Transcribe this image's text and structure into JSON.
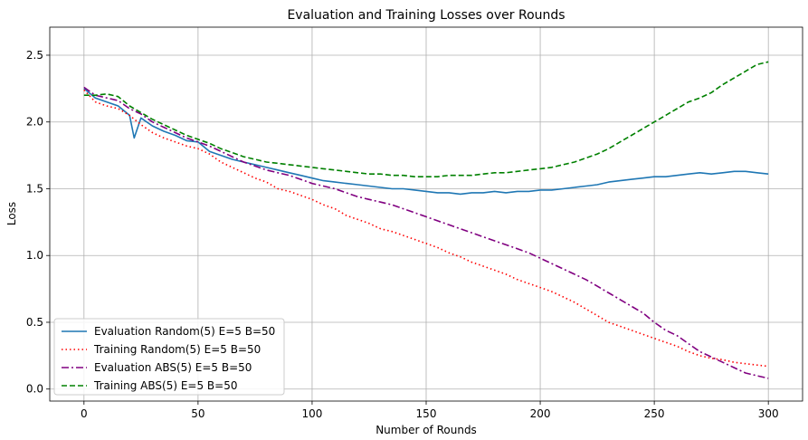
{
  "chart_data": {
    "type": "line",
    "title": "Evaluation and Training Losses over Rounds",
    "xlabel": "Number of Rounds",
    "ylabel": "Loss",
    "xlim": [
      -15,
      315
    ],
    "ylim": [
      -0.09,
      2.71
    ],
    "xticks": [
      0,
      50,
      100,
      150,
      200,
      250,
      300
    ],
    "yticks": [
      0.0,
      0.5,
      1.0,
      1.5,
      2.0,
      2.5
    ],
    "xtick_labels": [
      "0",
      "50",
      "100",
      "150",
      "200",
      "250",
      "300"
    ],
    "ytick_labels": [
      "0.0",
      "0.5",
      "1.0",
      "1.5",
      "2.0",
      "2.5"
    ],
    "grid": true,
    "legend_position": "lower-left",
    "series": [
      {
        "name": "Evaluation Random(5) E=5 B=50",
        "color": "#1f77b4",
        "style": "solid",
        "x": [
          0,
          5,
          10,
          15,
          20,
          22,
          25,
          30,
          35,
          40,
          45,
          50,
          55,
          60,
          65,
          70,
          75,
          80,
          85,
          90,
          95,
          100,
          105,
          110,
          115,
          120,
          125,
          130,
          135,
          140,
          145,
          150,
          155,
          160,
          165,
          170,
          175,
          180,
          185,
          190,
          195,
          200,
          205,
          210,
          215,
          220,
          225,
          230,
          235,
          240,
          245,
          250,
          255,
          260,
          265,
          270,
          275,
          280,
          285,
          290,
          295,
          300
        ],
        "y": [
          2.25,
          2.18,
          2.15,
          2.12,
          2.05,
          1.88,
          2.03,
          1.97,
          1.93,
          1.9,
          1.86,
          1.85,
          1.78,
          1.75,
          1.72,
          1.7,
          1.68,
          1.66,
          1.64,
          1.62,
          1.6,
          1.58,
          1.56,
          1.55,
          1.54,
          1.53,
          1.52,
          1.51,
          1.5,
          1.5,
          1.49,
          1.48,
          1.47,
          1.47,
          1.46,
          1.47,
          1.47,
          1.48,
          1.47,
          1.48,
          1.48,
          1.49,
          1.49,
          1.5,
          1.51,
          1.52,
          1.53,
          1.55,
          1.56,
          1.57,
          1.58,
          1.59,
          1.59,
          1.6,
          1.61,
          1.62,
          1.61,
          1.62,
          1.63,
          1.63,
          1.62,
          1.61
        ]
      },
      {
        "name": "Training Random(5) E=5 B=50",
        "color": "#ff0000",
        "style": "dotted",
        "x": [
          0,
          5,
          10,
          15,
          20,
          25,
          30,
          35,
          40,
          45,
          50,
          55,
          60,
          65,
          70,
          75,
          80,
          85,
          90,
          95,
          100,
          105,
          110,
          115,
          120,
          125,
          130,
          135,
          140,
          145,
          150,
          155,
          160,
          165,
          170,
          175,
          180,
          185,
          190,
          195,
          200,
          205,
          210,
          215,
          220,
          225,
          230,
          235,
          240,
          245,
          250,
          255,
          260,
          265,
          270,
          275,
          280,
          285,
          290,
          295,
          300
        ],
        "y": [
          2.24,
          2.15,
          2.12,
          2.1,
          2.05,
          1.98,
          1.92,
          1.88,
          1.85,
          1.82,
          1.8,
          1.76,
          1.7,
          1.66,
          1.62,
          1.58,
          1.55,
          1.5,
          1.48,
          1.45,
          1.42,
          1.38,
          1.35,
          1.3,
          1.27,
          1.24,
          1.2,
          1.18,
          1.15,
          1.12,
          1.09,
          1.06,
          1.02,
          0.99,
          0.95,
          0.92,
          0.89,
          0.86,
          0.82,
          0.79,
          0.76,
          0.73,
          0.69,
          0.65,
          0.6,
          0.55,
          0.5,
          0.47,
          0.44,
          0.41,
          0.38,
          0.35,
          0.32,
          0.28,
          0.25,
          0.23,
          0.22,
          0.2,
          0.19,
          0.18,
          0.17
        ]
      },
      {
        "name": "Evaluation ABS(5) E=5 B=50",
        "color": "#800080",
        "style": "dashdot",
        "x": [
          0,
          5,
          10,
          15,
          20,
          25,
          30,
          35,
          40,
          45,
          50,
          55,
          60,
          65,
          70,
          75,
          80,
          85,
          90,
          95,
          100,
          105,
          110,
          115,
          120,
          125,
          130,
          135,
          140,
          145,
          150,
          155,
          160,
          165,
          170,
          175,
          180,
          185,
          190,
          195,
          200,
          205,
          210,
          215,
          220,
          225,
          230,
          235,
          240,
          245,
          250,
          255,
          260,
          265,
          270,
          275,
          280,
          285,
          290,
          295,
          300
        ],
        "y": [
          2.26,
          2.2,
          2.18,
          2.16,
          2.1,
          2.06,
          2.0,
          1.96,
          1.92,
          1.88,
          1.85,
          1.82,
          1.78,
          1.74,
          1.7,
          1.67,
          1.64,
          1.62,
          1.6,
          1.57,
          1.54,
          1.52,
          1.5,
          1.47,
          1.44,
          1.42,
          1.4,
          1.38,
          1.35,
          1.32,
          1.29,
          1.26,
          1.23,
          1.2,
          1.17,
          1.14,
          1.11,
          1.08,
          1.05,
          1.02,
          0.98,
          0.94,
          0.9,
          0.86,
          0.82,
          0.77,
          0.72,
          0.67,
          0.62,
          0.57,
          0.5,
          0.44,
          0.4,
          0.34,
          0.28,
          0.24,
          0.2,
          0.16,
          0.12,
          0.1,
          0.08
        ]
      },
      {
        "name": "Training ABS(5) E=5 B=50",
        "color": "#008000",
        "style": "dashed",
        "x": [
          0,
          5,
          10,
          15,
          20,
          25,
          30,
          35,
          40,
          45,
          50,
          55,
          60,
          65,
          70,
          75,
          80,
          85,
          90,
          95,
          100,
          105,
          110,
          115,
          120,
          125,
          130,
          135,
          140,
          145,
          150,
          155,
          160,
          165,
          170,
          175,
          180,
          185,
          190,
          195,
          200,
          205,
          210,
          215,
          220,
          225,
          230,
          235,
          240,
          245,
          250,
          255,
          260,
          265,
          270,
          275,
          280,
          285,
          290,
          295,
          300
        ],
        "y": [
          2.2,
          2.2,
          2.21,
          2.19,
          2.12,
          2.07,
          2.02,
          1.98,
          1.94,
          1.9,
          1.87,
          1.84,
          1.8,
          1.77,
          1.74,
          1.72,
          1.7,
          1.69,
          1.68,
          1.67,
          1.66,
          1.65,
          1.64,
          1.63,
          1.62,
          1.61,
          1.61,
          1.6,
          1.6,
          1.59,
          1.59,
          1.59,
          1.6,
          1.6,
          1.6,
          1.61,
          1.62,
          1.62,
          1.63,
          1.64,
          1.65,
          1.66,
          1.68,
          1.7,
          1.73,
          1.76,
          1.8,
          1.85,
          1.9,
          1.95,
          2.0,
          2.05,
          2.1,
          2.15,
          2.18,
          2.22,
          2.28,
          2.33,
          2.38,
          2.43,
          2.45
        ]
      }
    ]
  }
}
